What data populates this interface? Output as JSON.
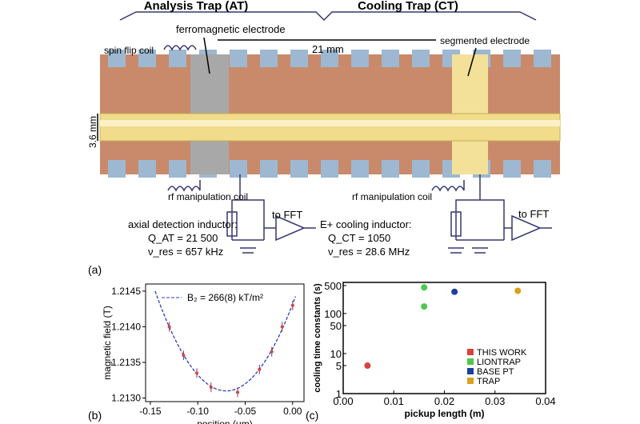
{
  "panel_a": {
    "label": "(a)",
    "at_title": "Analysis Trap (AT)",
    "ct_title": "Cooling Trap (CT)",
    "ferro": "ferromagnetic electrode",
    "distance": "21 mm",
    "spin_flip": "spin flip coil",
    "segmented": "segmented electrode",
    "diameter": "3.6 mm",
    "rf_left": "rf manipulation coil",
    "rf_right": "rf manipulation coil",
    "axial_det": "axial detection inductor:",
    "q_at": "Q_AT = 21 500",
    "v_at": "ν_res = 657 kHz",
    "cool_ind": "E+ cooling inductor:",
    "q_ct": "Q_CT = 1050",
    "v_ct": "ν_res = 28.6 MHz",
    "fft1": "to FFT",
    "fft2": "to FFT",
    "colors": {
      "copper": "#c98a6c",
      "electrode_blue": "#9db8d0",
      "tube": "#f0dc8a",
      "ferro": "#a8a8a8",
      "circuit": "#3a3570"
    }
  },
  "chart_data": [
    {
      "type": "scatter",
      "panel_label": "(b)",
      "xlabel": "position (μm)",
      "ylabel": "magnetic field (T)",
      "xlim": [
        -0.155,
        0.012
      ],
      "ylim": [
        1.21295,
        1.2146
      ],
      "xticks": [
        "-0.15",
        "-0.10",
        "-0.05",
        "0.00"
      ],
      "xtick_values": [
        -0.15,
        -0.1,
        -0.05,
        0.0
      ],
      "yticks": [
        "1.2130",
        "1.2135",
        "1.2140",
        "1.2145"
      ],
      "ytick_values": [
        1.213,
        1.2135,
        1.214,
        1.2145
      ],
      "legend": "B₂ = 266(8) kT/m²",
      "fit": {
        "vertex_x": -0.07,
        "vertex_y": 1.2131,
        "curvature": 0.249
      },
      "points": [
        [
          -0.13,
          1.214
        ],
        [
          -0.115,
          1.2136
        ],
        [
          -0.101,
          1.21335
        ],
        [
          -0.086,
          1.21315
        ],
        [
          -0.058,
          1.21308
        ],
        [
          -0.035,
          1.2134
        ],
        [
          -0.022,
          1.21365
        ],
        [
          -0.011,
          1.214
        ],
        [
          0.0,
          1.2143
        ]
      ]
    },
    {
      "type": "scatter",
      "panel_label": "(c)",
      "xlabel": "pickup length (m)",
      "ylabel": "cooling time constants (s)",
      "xlim": [
        0,
        0.04
      ],
      "ylim": [
        1,
        600
      ],
      "yscale": "log",
      "xticks": [
        "0.00",
        "0.01",
        "0.02",
        "0.03",
        "0.04"
      ],
      "xtick_values": [
        0,
        0.01,
        0.02,
        0.03,
        0.04
      ],
      "yticks": [
        "1",
        "5",
        "10",
        "50",
        "100",
        "500"
      ],
      "ytick_values": [
        1,
        5,
        10,
        50,
        100,
        500
      ],
      "series": [
        {
          "name": "THIS WORK",
          "color": "#d9413f",
          "points": [
            [
              0.0048,
              5
            ]
          ]
        },
        {
          "name": "LIONTRAP",
          "color": "#4cc94c",
          "points": [
            [
              0.016,
              450
            ],
            [
              0.016,
              150
            ]
          ]
        },
        {
          "name": "BASE PT",
          "color": "#1b3fa0",
          "points": [
            [
              0.022,
              350
            ]
          ]
        },
        {
          "name": "TRAP",
          "color": "#d9a21c",
          "points": [
            [
              0.0345,
              370
            ]
          ]
        }
      ],
      "legend_position": "lower-right"
    }
  ]
}
